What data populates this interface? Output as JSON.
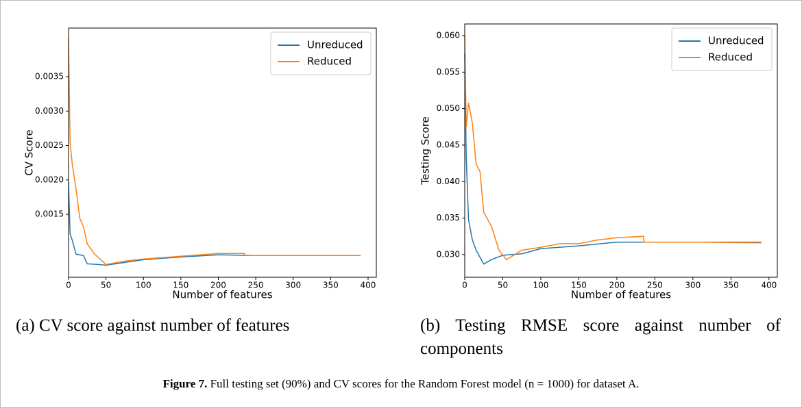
{
  "chart_data": [
    {
      "type": "line",
      "xlabel": "Number of features",
      "ylabel": "CV Score",
      "xlim": [
        0,
        411
      ],
      "xticks": [
        0,
        50,
        100,
        150,
        200,
        250,
        300,
        350,
        400
      ],
      "ylim": [
        0.000585,
        0.004207
      ],
      "yticks": [
        0.0015,
        {
          "value": 0.002,
          "label": "0.0020"
        },
        0.0025,
        {
          "value": 0.003,
          "label": "0.0030"
        },
        0.0035
      ],
      "legend": "upper right",
      "series": [
        {
          "name": "Unreduced",
          "color": "#1f77b4",
          "x": [
            0,
            2,
            5,
            10,
            20,
            25,
            40,
            50,
            75,
            100,
            150,
            200,
            250,
            300,
            390
          ],
          "values": [
            0.00197,
            0.00122,
            0.00112,
            0.00092,
            0.0009,
            0.00078,
            0.00077,
            0.00076,
            0.0008,
            0.00084,
            0.00088,
            0.00091,
            0.0009,
            0.0009,
            0.0009
          ]
        },
        {
          "name": "Reduced",
          "color": "#ff7f0e",
          "x": [
            0,
            2,
            5,
            10,
            15,
            20,
            25,
            35,
            45,
            50,
            75,
            100,
            150,
            200,
            235,
            236,
            300,
            390
          ],
          "values": [
            0.00406,
            0.00256,
            0.00222,
            0.00187,
            0.00144,
            0.00132,
            0.00107,
            0.00092,
            0.00082,
            0.00077,
            0.00082,
            0.00085,
            0.00089,
            0.00093,
            0.00093,
            0.0009,
            0.0009,
            0.0009
          ]
        }
      ]
    },
    {
      "type": "line",
      "xlabel": "Number of features",
      "ylabel": "Testing Score",
      "xlim": [
        0,
        411
      ],
      "xticks": [
        0,
        50,
        100,
        150,
        200,
        250,
        300,
        350,
        400
      ],
      "ylim": [
        0.02689,
        0.0616
      ],
      "yticks": [
        {
          "value": 0.03,
          "label": "0.030"
        },
        0.035,
        {
          "value": 0.04,
          "label": "0.040"
        },
        0.045,
        {
          "value": 0.05,
          "label": "0.050"
        },
        0.055,
        {
          "value": 0.06,
          "label": "0.060"
        }
      ],
      "legend": "upper right",
      "series": [
        {
          "name": "Unreduced",
          "color": "#1f77b4",
          "x": [
            0,
            2,
            5,
            10,
            15,
            25,
            35,
            50,
            75,
            100,
            150,
            200,
            250,
            300,
            390
          ],
          "values": [
            0.0575,
            0.0433,
            0.0348,
            0.032,
            0.0306,
            0.0287,
            0.0293,
            0.0299,
            0.0301,
            0.0308,
            0.0312,
            0.0317,
            0.0317,
            0.0317,
            0.0317
          ]
        },
        {
          "name": "Reduced",
          "color": "#ff7f0e",
          "x": [
            0,
            2,
            5,
            10,
            15,
            20,
            25,
            35,
            45,
            55,
            75,
            100,
            125,
            150,
            175,
            200,
            235,
            236,
            300,
            390
          ],
          "values": [
            0.06,
            0.0475,
            0.0508,
            0.048,
            0.0424,
            0.0414,
            0.0358,
            0.0339,
            0.0306,
            0.0293,
            0.0306,
            0.031,
            0.0315,
            0.0315,
            0.032,
            0.0323,
            0.0325,
            0.0317,
            0.0317,
            0.0316
          ]
        }
      ]
    }
  ],
  "subcaptions": [
    "(a) CV score against number of features",
    "(b) Testing RMSE score against number of components"
  ],
  "caption": {
    "label": "Figure 7.",
    "text": "Full testing set (90%) and CV scores for the Random Forest model (n = 1000) for dataset A."
  }
}
